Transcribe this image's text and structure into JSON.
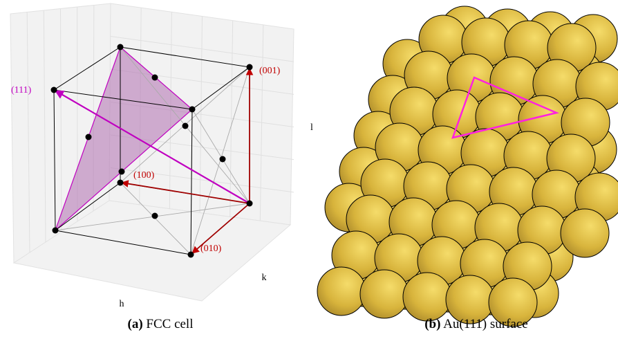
{
  "panels": [
    {
      "label": "(a)",
      "caption": "FCC cell",
      "axis_labels": {
        "h": "h",
        "k": "k",
        "l": "l"
      },
      "directions": [
        "(111)",
        "(001)",
        "(100)",
        "(010)"
      ]
    },
    {
      "label": "(b)",
      "caption": "Au(111) surface"
    }
  ]
}
